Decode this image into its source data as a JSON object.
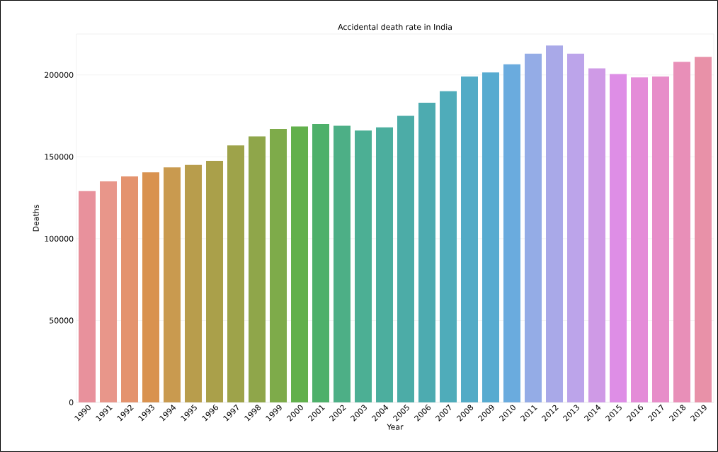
{
  "chart_data": {
    "type": "bar",
    "title": "Accidental death rate in India",
    "xlabel": "Year",
    "ylabel": "Deaths",
    "categories": [
      "1990",
      "1991",
      "1992",
      "1993",
      "1994",
      "1995",
      "1996",
      "1997",
      "1998",
      "1999",
      "2000",
      "2001",
      "2002",
      "2003",
      "2004",
      "2005",
      "2006",
      "2007",
      "2008",
      "2009",
      "2010",
      "2011",
      "2012",
      "2013",
      "2014",
      "2015",
      "2016",
      "2017",
      "2018",
      "2019"
    ],
    "values": [
      129000,
      135000,
      138000,
      140500,
      143500,
      145000,
      147500,
      157000,
      162500,
      167000,
      168500,
      170000,
      169000,
      166000,
      168000,
      175000,
      183000,
      190000,
      199000,
      201500,
      206500,
      213000,
      218000,
      213000,
      204000,
      200500,
      198500,
      199000,
      208000,
      211000
    ],
    "colors": [
      "#e8919c",
      "#e8968a",
      "#e4936e",
      "#d9924f",
      "#c99a4f",
      "#b89d4c",
      "#aaa04a",
      "#9ea34a",
      "#8fa64a",
      "#7eab4a",
      "#62b04c",
      "#4eb06a",
      "#4daf86",
      "#4caf94",
      "#4cae9e",
      "#4caca7",
      "#4dabb0",
      "#4facba",
      "#53abc6",
      "#57abd0",
      "#6aabde",
      "#94ace6",
      "#a9a9e8",
      "#bca4ea",
      "#cf9ae6",
      "#de8ee6",
      "#e48cd8",
      "#e78dc9",
      "#e88fb8",
      "#e891a8"
    ],
    "ylim": [
      0,
      225000
    ],
    "yticks": [
      0,
      50000,
      100000,
      150000,
      200000
    ],
    "grid": "y"
  }
}
